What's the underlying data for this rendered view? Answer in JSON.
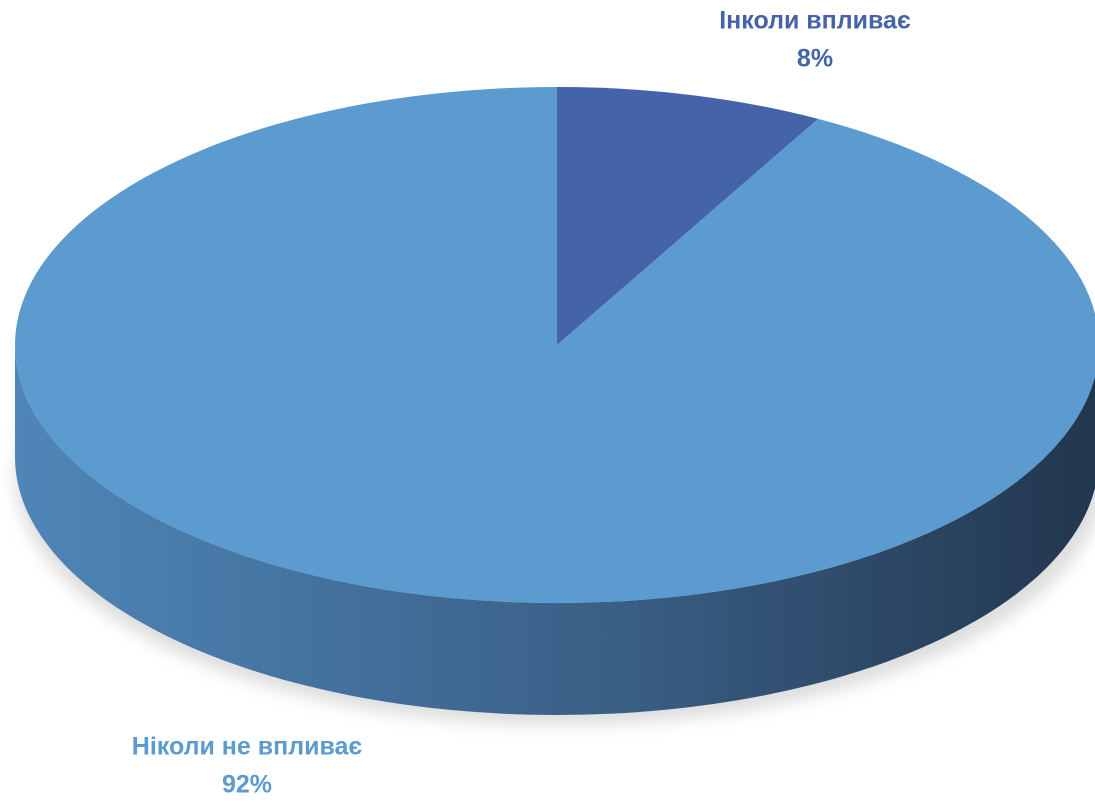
{
  "chart_data": {
    "type": "pie",
    "categories": [
      "Інколи впливає",
      "Ніколи не впливає"
    ],
    "values": [
      8,
      92
    ],
    "value_labels": [
      "8%",
      "92%"
    ],
    "colors": [
      "#4563a8",
      "#5b9bd0"
    ]
  }
}
